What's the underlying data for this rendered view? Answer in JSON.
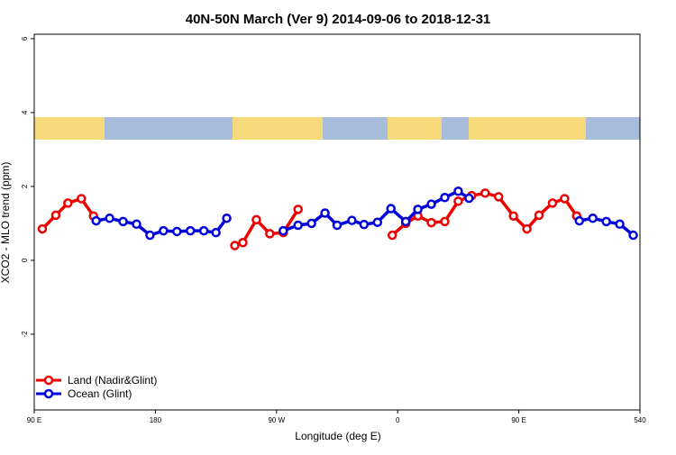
{
  "chart_data": {
    "type": "line",
    "title": "40N-50N March (Ver 9)   2014-09-06 to 2018-12-31",
    "x_label": "Longitude (deg E)",
    "y_label": "XCO2 - MLO trend (ppm)",
    "xlim": [
      90,
      540
    ],
    "ylim": [
      -4.05,
      6.12
    ],
    "xticks": [
      {
        "value": 90,
        "label": "90 E"
      },
      180,
      {
        "value": 270,
        "label": "90 W"
      },
      {
        "value": 360,
        "label": "0"
      },
      {
        "value": 450,
        "label": "90 E"
      },
      540
    ],
    "yticks": [
      -2,
      0,
      2,
      4,
      6
    ],
    "legend": "bottom-left",
    "series": [
      {
        "name": "Land (Nadir&Glint)",
        "color": "#ee0000",
        "x": [
          96,
          106,
          115,
          125,
          134,
          null,
          239,
          245,
          255,
          265,
          275,
          286,
          null,
          356,
          366,
          375,
          385,
          395,
          405,
          415,
          425,
          435,
          446,
          456,
          465,
          475,
          484,
          493
        ],
        "values": [
          0.85,
          1.22,
          1.55,
          1.67,
          1.2,
          null,
          0.4,
          0.48,
          1.1,
          0.72,
          0.75,
          1.38,
          null,
          0.68,
          1.0,
          1.2,
          1.02,
          1.05,
          1.6,
          1.75,
          1.82,
          1.72,
          1.2,
          0.85,
          1.22,
          1.55,
          1.67,
          1.2
        ]
      },
      {
        "name": "Ocean (Glint)",
        "color": "#0000dd",
        "x": [
          136,
          146,
          156,
          166,
          176,
          186,
          196,
          206,
          216,
          225,
          233,
          null,
          275,
          286,
          296,
          306,
          315,
          326,
          335,
          345,
          355,
          366,
          375,
          385,
          395,
          405,
          413,
          null,
          495,
          505,
          515,
          525,
          535
        ],
        "values": [
          1.07,
          1.14,
          1.05,
          0.98,
          0.68,
          0.8,
          0.78,
          0.8,
          0.8,
          0.75,
          1.14,
          null,
          0.8,
          0.95,
          1.0,
          1.28,
          0.95,
          1.08,
          0.97,
          1.03,
          1.4,
          1.05,
          1.38,
          1.52,
          1.7,
          1.87,
          1.68,
          null,
          1.07,
          1.14,
          1.05,
          0.98,
          0.68
        ]
      }
    ]
  }
}
